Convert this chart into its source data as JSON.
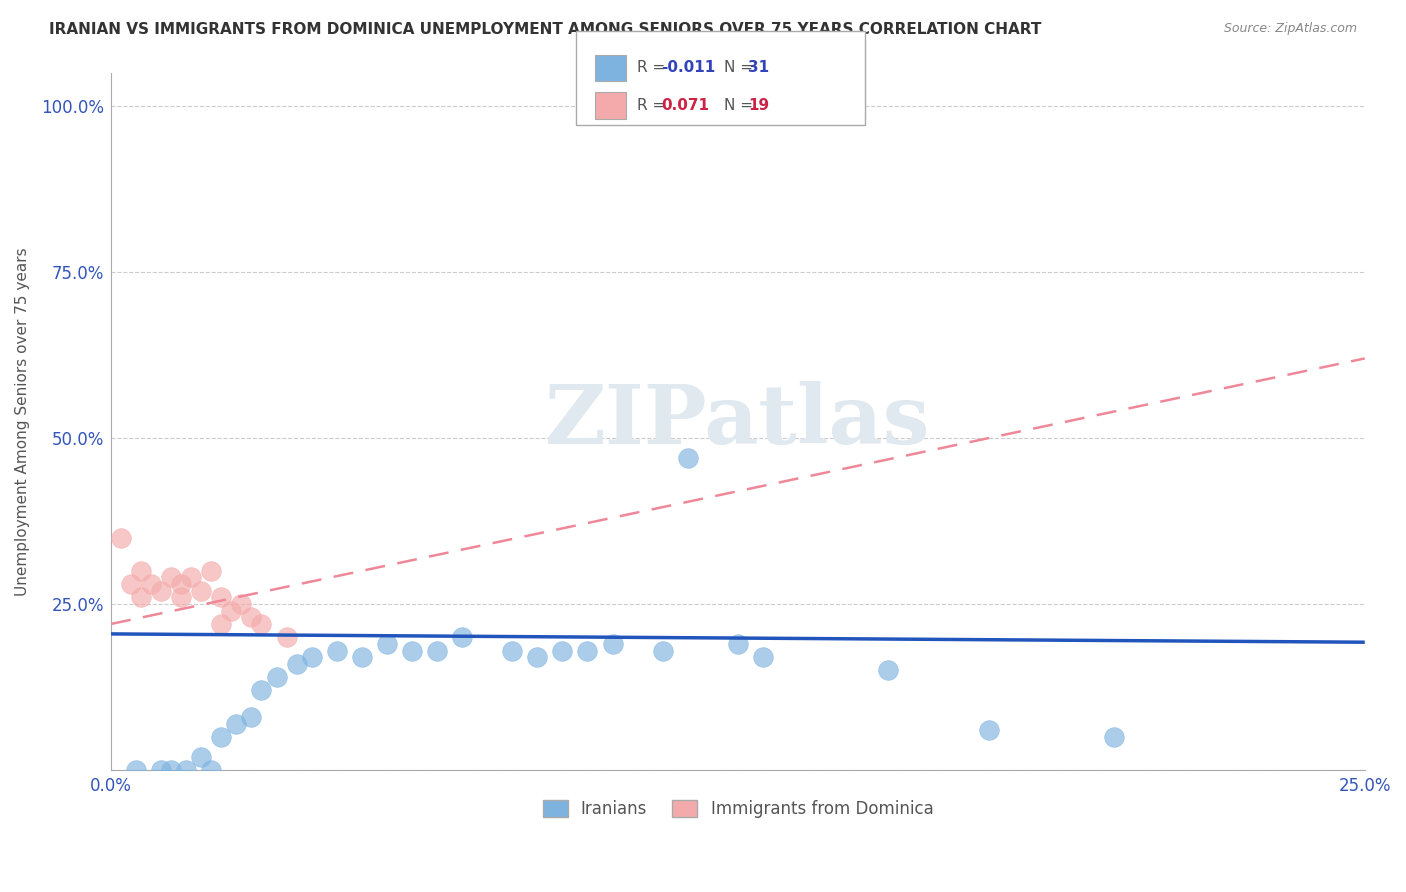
{
  "title": "IRANIAN VS IMMIGRANTS FROM DOMINICA UNEMPLOYMENT AMONG SENIORS OVER 75 YEARS CORRELATION CHART",
  "source": "Source: ZipAtlas.com",
  "ylabel": "Unemployment Among Seniors over 75 years",
  "xlim": [
    0.0,
    0.25
  ],
  "ylim": [
    0.0,
    1.05
  ],
  "blue_color": "#7EB3E0",
  "pink_color": "#F4AAAA",
  "blue_line_color": "#2255BB",
  "pink_line_color": "#EE8899",
  "watermark_color": "#E0E8F0",
  "grid_color": "#CCCCCC",
  "iranians_x": [
    0.005,
    0.01,
    0.012,
    0.015,
    0.018,
    0.02,
    0.022,
    0.025,
    0.028,
    0.03,
    0.033,
    0.037,
    0.04,
    0.045,
    0.05,
    0.055,
    0.06,
    0.065,
    0.07,
    0.08,
    0.085,
    0.09,
    0.095,
    0.1,
    0.11,
    0.125,
    0.13,
    0.155,
    0.175,
    0.2,
    0.115
  ],
  "iranians_y": [
    0.0,
    0.0,
    0.0,
    0.0,
    0.02,
    0.0,
    0.05,
    0.07,
    0.08,
    0.12,
    0.14,
    0.16,
    0.17,
    0.18,
    0.17,
    0.19,
    0.18,
    0.18,
    0.2,
    0.18,
    0.17,
    0.18,
    0.18,
    0.19,
    0.18,
    0.19,
    0.17,
    0.15,
    0.06,
    0.05,
    0.47
  ],
  "dominica_x": [
    0.002,
    0.004,
    0.006,
    0.006,
    0.008,
    0.01,
    0.012,
    0.014,
    0.014,
    0.016,
    0.018,
    0.02,
    0.022,
    0.022,
    0.024,
    0.026,
    0.028,
    0.03,
    0.035
  ],
  "dominica_y": [
    0.35,
    0.28,
    0.3,
    0.26,
    0.28,
    0.27,
    0.29,
    0.26,
    0.28,
    0.29,
    0.27,
    0.3,
    0.26,
    0.22,
    0.24,
    0.25,
    0.23,
    0.22,
    0.2
  ],
  "legend_R1_text": "R = -0.011",
  "legend_N1_text": "N = 31",
  "legend_R2_text": "R =  0.071",
  "legend_N2_text": "N = 19",
  "blue_R_color": "#3344BB",
  "pink_R_color": "#CC2244"
}
